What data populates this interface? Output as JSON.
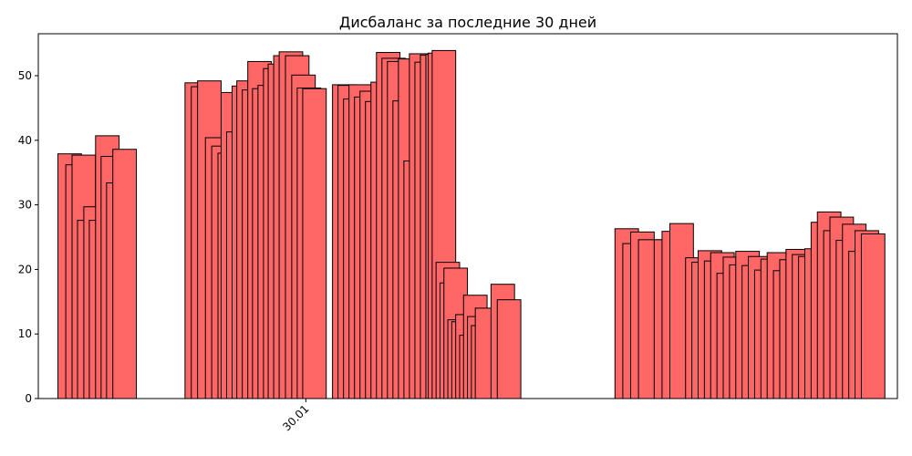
{
  "chart_data": {
    "type": "bar",
    "title": "Дисбаланс за последние 30 дней",
    "xlabel": "",
    "ylabel": "",
    "ylim": [
      0,
      56.5
    ],
    "yticks": [
      0,
      10,
      20,
      30,
      40,
      50
    ],
    "xticks": [
      {
        "label": "30.01",
        "x": 30.01
      }
    ],
    "bar_color": "#ff6666",
    "edge_color": "#000000",
    "grid": false,
    "bar_width": 0.3,
    "x": [
      27.0,
      27.1,
      27.18,
      27.25,
      27.33,
      27.4,
      27.48,
      27.55,
      27.62,
      27.7,
      28.62,
      28.7,
      28.78,
      28.88,
      28.96,
      29.04,
      29.08,
      29.15,
      29.22,
      29.28,
      29.35,
      29.42,
      29.48,
      29.55,
      29.62,
      29.68,
      29.75,
      29.82,
      29.9,
      29.98,
      30.05,
      30.12,
      30.5,
      30.57,
      30.64,
      30.71,
      30.78,
      30.85,
      30.92,
      30.99,
      31.06,
      31.13,
      31.2,
      31.27,
      31.34,
      31.41,
      31.48,
      31.55,
      31.62,
      31.69,
      31.72,
      31.77,
      31.82,
      31.87,
      31.92,
      31.97,
      32.02,
      32.07,
      32.12,
      32.17,
      32.22,
      32.27,
      32.32,
      32.52,
      32.6,
      34.1,
      34.2,
      34.3,
      34.4,
      34.6,
      34.7,
      34.8,
      35.0,
      35.08,
      35.16,
      35.24,
      35.32,
      35.4,
      35.48,
      35.56,
      35.64,
      35.72,
      35.8,
      35.88,
      35.96,
      36.04,
      36.12,
      36.2,
      36.28,
      36.36,
      36.44,
      36.52,
      36.6,
      36.68,
      36.76,
      36.84,
      36.92,
      37.0,
      37.08,
      37.16,
      37.24
    ],
    "values": [
      37.9,
      36.2,
      37.7,
      27.6,
      29.7,
      27.6,
      40.7,
      37.5,
      33.4,
      38.6,
      48.9,
      48.3,
      49.2,
      40.4,
      39.1,
      38.0,
      47.4,
      41.3,
      48.4,
      49.2,
      47.8,
      52.2,
      48.0,
      48.5,
      51.1,
      51.8,
      53.1,
      53.7,
      53.1,
      50.1,
      48.1,
      48.0,
      48.6,
      48.5,
      46.4,
      48.6,
      46.7,
      47.6,
      46.0,
      49.0,
      53.6,
      52.7,
      52.2,
      46.1,
      52.6,
      36.8,
      53.4,
      52.1,
      53.2,
      53.3,
      53.5,
      53.9,
      21.1,
      17.9,
      20.2,
      12.2,
      11.9,
      13.0,
      9.8,
      16.0,
      12.7,
      11.3,
      14.0,
      17.7,
      15.3,
      26.3,
      24.0,
      25.8,
      24.6,
      24.6,
      25.9,
      27.1,
      21.8,
      21.1,
      22.9,
      21.3,
      22.6,
      19.4,
      21.9,
      20.7,
      22.8,
      20.6,
      22.0,
      19.9,
      21.6,
      22.6,
      19.8,
      21.5,
      23.1,
      22.3,
      22.0,
      23.2,
      27.3,
      28.9,
      26.0,
      28.1,
      24.5,
      27.0,
      22.8,
      26.0,
      25.5
    ]
  }
}
